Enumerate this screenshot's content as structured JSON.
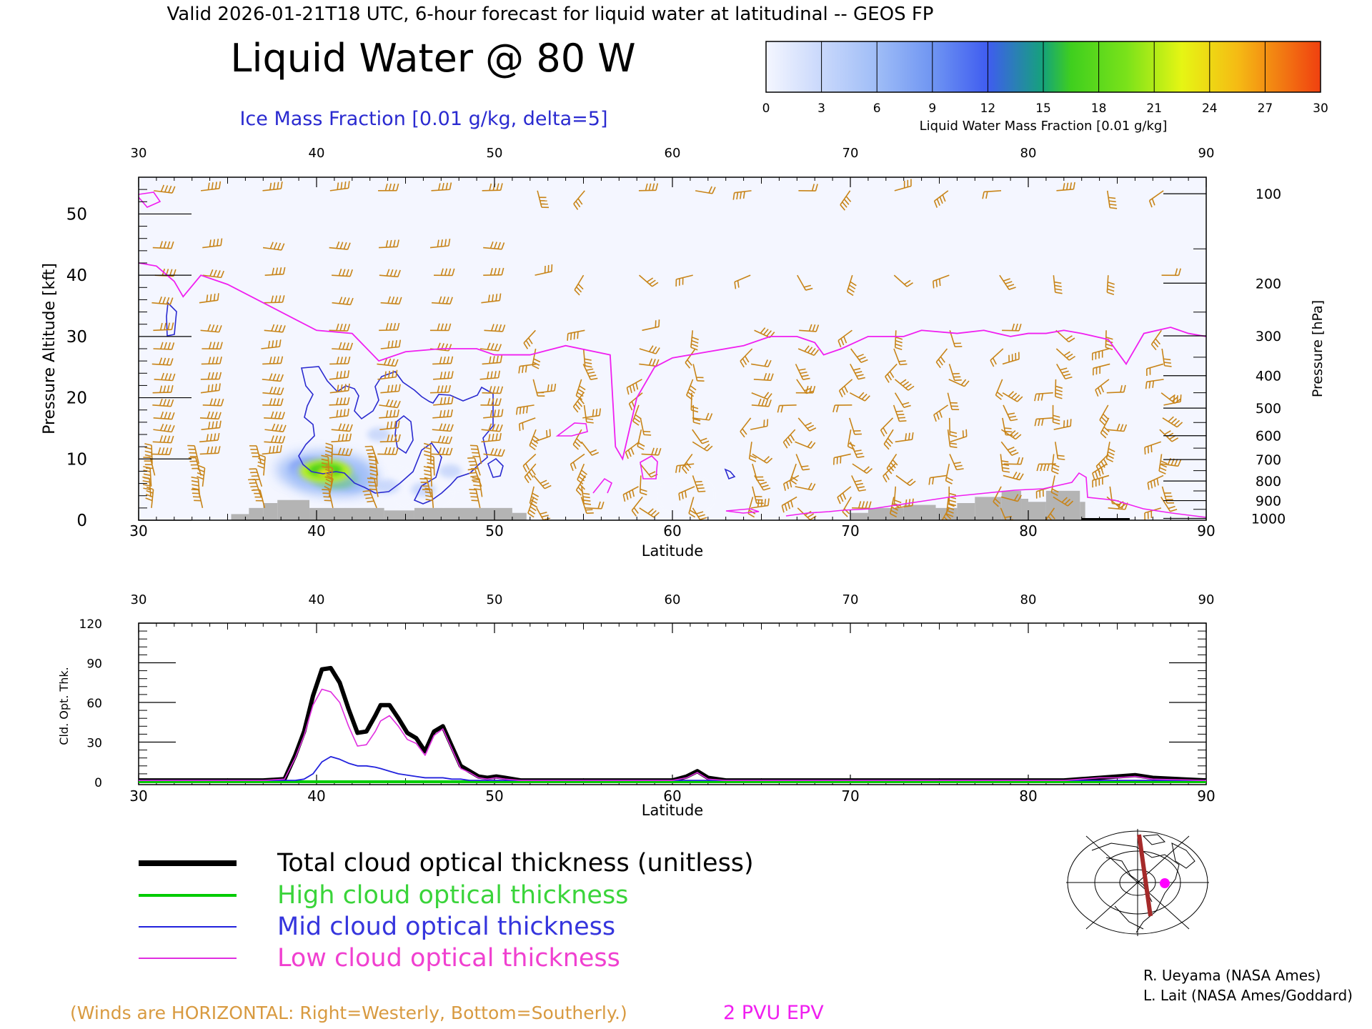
{
  "header": {
    "valid_line": "Valid 2026-01-21T18 UTC, 6-hour forecast for liquid water at latitudinal -- GEOS FP",
    "title": "Liquid Water @ 80 W",
    "ice_label": "Ice Mass Fraction [0.01 g/kg, delta=5]"
  },
  "colorbar": {
    "ticks": [
      "0",
      "3",
      "6",
      "9",
      "12",
      "15",
      "18",
      "21",
      "24",
      "27",
      "30"
    ],
    "label": "Liquid Water Mass Fraction [0.01 g/kg]",
    "colors": [
      "#f4f6ff",
      "#c9d8fb",
      "#9fbdf7",
      "#6f95f2",
      "#3f5cf0",
      "#15a37a",
      "#3fcf1e",
      "#b9f21a",
      "#f5e114",
      "#f5a414",
      "#f05010"
    ]
  },
  "colors": {
    "wind": "#c88418",
    "epv": "#f01ff0",
    "ice": "#2a2ad0",
    "terrain": "#b4b4b4",
    "total": "#000000",
    "high": "#00cc00",
    "mid": "#2222dd",
    "low": "#e02ee0",
    "bg_field": "#f4f6ff"
  },
  "chart_data": [
    {
      "type": "heatmap",
      "title": "Liquid Water @ 80 W",
      "xlabel": "Latitude",
      "ylabel": "Pressure Altitude [kft]",
      "ylabel_right": "Pressure [hPa]",
      "xlim": [
        30,
        90
      ],
      "ylim": [
        0,
        56
      ],
      "x_ticks": [
        "30",
        "40",
        "50",
        "60",
        "70",
        "80",
        "90"
      ],
      "y_ticks": [
        "0",
        "10",
        "20",
        "30",
        "40",
        "50"
      ],
      "pressure_levels": [
        {
          "hPa": "100",
          "kft": 53.3
        },
        {
          "hPa": "200",
          "kft": 38.7
        },
        {
          "hPa": "300",
          "kft": 30.1
        },
        {
          "hPa": "400",
          "kft": 23.6
        },
        {
          "hPa": "500",
          "kft": 18.3
        },
        {
          "hPa": "600",
          "kft": 13.8
        },
        {
          "hPa": "700",
          "kft": 9.9
        },
        {
          "hPa": "800",
          "kft": 6.4
        },
        {
          "hPa": "900",
          "kft": 3.2
        },
        {
          "hPa": "1000",
          "kft": 0.3
        }
      ],
      "liquid_water_blobs": [
        {
          "lat": 40.5,
          "kft": 8.0,
          "value": 20
        },
        {
          "lat": 41.0,
          "kft": 7.0,
          "value": 17
        },
        {
          "lat": 39.6,
          "kft": 8.5,
          "value": 12
        },
        {
          "lat": 42.0,
          "kft": 6.0,
          "value": 6
        },
        {
          "lat": 44.0,
          "kft": 5.5,
          "value": 3
        },
        {
          "lat": 46.0,
          "kft": 5.0,
          "value": 3
        },
        {
          "lat": 47.5,
          "kft": 8.0,
          "value": 2
        },
        {
          "lat": 43.5,
          "kft": 14.0,
          "value": 2
        },
        {
          "lat": 60.8,
          "kft": 4.0,
          "value": 1
        },
        {
          "lat": 83.5,
          "kft": 4.0,
          "value": 1
        }
      ],
      "epv_2pvu_line": {
        "name": "2 PVU EPV",
        "lat": [
          30,
          31,
          32,
          32.5,
          33.5,
          35,
          37,
          39,
          40,
          42,
          43.5,
          45,
          47,
          49,
          50,
          52,
          54,
          56.5,
          56.8,
          57.2,
          58,
          59,
          60,
          62,
          64,
          65.5,
          67,
          68,
          68.5,
          69.5,
          71,
          73,
          74,
          76,
          77.5,
          79,
          80,
          81,
          82,
          83,
          84.5,
          85.5,
          86.5,
          88,
          89,
          90
        ],
        "kft": [
          42,
          41.5,
          39,
          36.5,
          40,
          38.5,
          35.5,
          32.5,
          31,
          30.5,
          26,
          27.5,
          28,
          28,
          27,
          27,
          28.5,
          27,
          12,
          10,
          20,
          25,
          26.5,
          27.5,
          28.5,
          30,
          30,
          29,
          27,
          28,
          30,
          30,
          31,
          30.5,
          31,
          30,
          30.5,
          30.5,
          31,
          30.5,
          29.5,
          25.5,
          30.5,
          31.5,
          30.5,
          30
        ]
      },
      "terrain": [
        {
          "lat0": 35.2,
          "lat1": 36.2,
          "kft": 1.0
        },
        {
          "lat0": 36.2,
          "lat1": 37.0,
          "kft": 2.0
        },
        {
          "lat0": 37.0,
          "lat1": 37.8,
          "kft": 2.8
        },
        {
          "lat0": 37.8,
          "lat1": 39.6,
          "kft": 3.3
        },
        {
          "lat0": 39.6,
          "lat1": 43.8,
          "kft": 2.0
        },
        {
          "lat0": 43.8,
          "lat1": 45.5,
          "kft": 1.6
        },
        {
          "lat0": 45.5,
          "lat1": 51.0,
          "kft": 2.0
        },
        {
          "lat0": 51.0,
          "lat1": 51.8,
          "kft": 1.2
        },
        {
          "lat0": 70.0,
          "lat1": 71.0,
          "kft": 1.2
        },
        {
          "lat0": 71.0,
          "lat1": 73.0,
          "kft": 2.0
        },
        {
          "lat0": 73.0,
          "lat1": 74.8,
          "kft": 2.5
        },
        {
          "lat0": 74.8,
          "lat1": 76.0,
          "kft": 2.0
        },
        {
          "lat0": 76.0,
          "lat1": 77.0,
          "kft": 2.8
        },
        {
          "lat0": 77.0,
          "lat1": 78.5,
          "kft": 3.8
        },
        {
          "lat0": 78.5,
          "lat1": 79.6,
          "kft": 4.8
        },
        {
          "lat0": 79.6,
          "lat1": 80.0,
          "kft": 3.5
        },
        {
          "lat0": 80.0,
          "lat1": 81.0,
          "kft": 3.0
        },
        {
          "lat0": 81.0,
          "lat1": 82.9,
          "kft": 4.8
        },
        {
          "lat0": 82.9,
          "lat1": 83.2,
          "kft": 3.0
        }
      ],
      "legend_note": "(Winds are HORIZONTAL: Right=Westerly, Bottom=Southerly.)",
      "epv_label": "2 PVU EPV"
    },
    {
      "type": "line",
      "xlabel": "Latitude",
      "ylabel": "Cld. Opt. Thk.",
      "xlim": [
        30,
        90
      ],
      "ylim": [
        0,
        120
      ],
      "x_ticks": [
        "30",
        "40",
        "50",
        "60",
        "70",
        "80",
        "90"
      ],
      "y_ticks": [
        "0",
        "30",
        "60",
        "90",
        "120"
      ],
      "x": [
        30,
        37,
        38.2,
        38.8,
        39.3,
        39.8,
        40.3,
        40.8,
        41.3,
        41.8,
        42.3,
        42.8,
        43.3,
        43.6,
        44.1,
        44.6,
        45.1,
        45.6,
        46.1,
        46.6,
        47.1,
        47.6,
        48.1,
        48.6,
        49.1,
        49.6,
        50.1,
        50.6,
        51.5,
        60,
        60.8,
        61.4,
        62,
        63,
        82,
        83,
        84,
        85,
        86,
        87,
        90
      ],
      "series": [
        {
          "name": "Total cloud optical thickness (unitless)",
          "values": [
            1,
            1,
            2,
            20,
            38,
            65,
            85,
            86,
            75,
            55,
            37,
            38,
            50,
            58,
            58,
            48,
            37,
            33,
            23,
            38,
            42,
            27,
            12,
            8,
            4,
            3,
            4,
            3,
            1,
            1,
            4,
            8,
            3,
            1,
            1,
            2,
            3,
            4,
            5,
            3,
            1
          ]
        },
        {
          "name": "High cloud optical thickness",
          "values": [
            0,
            0,
            0,
            0,
            0,
            0,
            0,
            0,
            0,
            0,
            0,
            0,
            0,
            0,
            0,
            0,
            0,
            0,
            0,
            0,
            0,
            0,
            0,
            0,
            0,
            0,
            0,
            0,
            0,
            0,
            0,
            0,
            0,
            0,
            0,
            0,
            0,
            0,
            0,
            0,
            0
          ]
        },
        {
          "name": "Mid cloud optical thickness",
          "values": [
            1,
            1,
            1,
            1,
            2,
            6,
            15,
            19,
            17,
            14,
            12,
            12,
            11,
            10,
            8,
            6,
            5,
            4,
            3,
            3,
            3,
            2,
            2,
            1,
            1,
            1,
            1,
            1,
            1,
            1,
            1,
            1,
            1,
            1,
            1,
            1,
            1,
            1,
            1,
            1,
            1
          ]
        },
        {
          "name": "Low cloud optical thickness",
          "values": [
            1,
            1,
            2,
            18,
            35,
            58,
            70,
            68,
            60,
            42,
            27,
            28,
            38,
            46,
            50,
            42,
            32,
            29,
            20,
            35,
            40,
            25,
            10,
            7,
            3,
            2,
            3,
            2,
            1,
            1,
            3,
            7,
            2,
            1,
            1,
            2,
            3,
            3,
            4,
            2,
            1
          ]
        }
      ]
    }
  ],
  "legend": {
    "total": "Total cloud optical thickness (unitless)",
    "high": "High cloud optical thickness",
    "mid": "Mid cloud optical thickness",
    "low": "Low cloud optical thickness"
  },
  "credits": {
    "line1": "R. Ueyama (NASA Ames)",
    "line2": "L. Lait (NASA Ames/Goddard)"
  },
  "map_inset": {
    "icon": "locator-map-icon"
  }
}
